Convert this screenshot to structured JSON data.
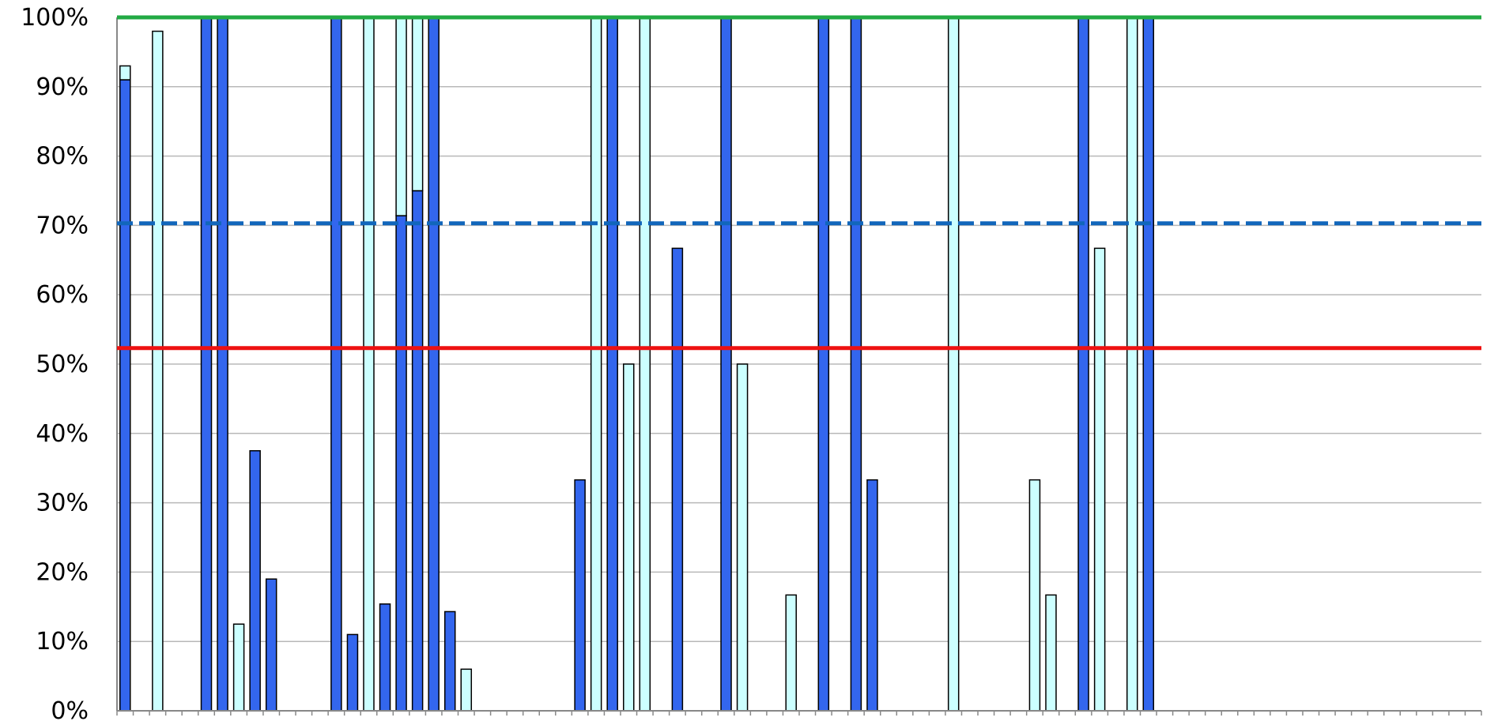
{
  "chart_data": {
    "type": "bar",
    "stacked": true,
    "title": "",
    "xlabel": "",
    "ylabel": "",
    "ylim": [
      0,
      100
    ],
    "yticks": [
      "0%",
      "10%",
      "20%",
      "30%",
      "40%",
      "50%",
      "60%",
      "70%",
      "80%",
      "90%",
      "100%"
    ],
    "grid": true,
    "legend": "none",
    "category_count": 84,
    "series": [
      {
        "color": "#3366ee",
        "values": [
          91,
          0,
          0,
          0,
          0,
          100,
          100,
          0,
          37.5,
          19,
          0,
          0,
          0,
          100,
          11,
          0,
          15.4,
          71.4,
          75,
          100,
          14.3,
          0,
          0,
          0,
          0,
          0,
          0,
          0,
          33.3,
          0,
          100,
          0,
          0,
          0,
          66.7,
          0,
          0,
          100,
          0,
          0,
          0,
          0,
          0,
          100,
          0,
          100,
          33.3,
          0,
          0,
          0,
          0,
          0,
          0,
          0,
          0,
          0,
          0,
          0,
          0,
          100,
          0,
          0,
          0,
          100,
          0,
          0,
          0,
          0,
          0,
          0,
          0,
          0,
          0,
          0,
          0,
          0,
          0,
          0,
          0,
          0,
          0,
          0,
          0,
          0
        ]
      },
      {
        "color": "#ccffff",
        "values": [
          2,
          0,
          98,
          0,
          0,
          0,
          0,
          12.5,
          0,
          0,
          0,
          0,
          0,
          0,
          0,
          100,
          0,
          28.6,
          25,
          0,
          0,
          6,
          0,
          0,
          0,
          0,
          0,
          0,
          0,
          100,
          0,
          50,
          100,
          0,
          0,
          0,
          0,
          0,
          50,
          0,
          0,
          16.7,
          0,
          0,
          0,
          0,
          0,
          0,
          0,
          0,
          0,
          100,
          0,
          0,
          0,
          0,
          33.3,
          16.7,
          0,
          0,
          66.7,
          0,
          100,
          0,
          0,
          0,
          0,
          0,
          0,
          0,
          0,
          0,
          0,
          0,
          0,
          0,
          0,
          0,
          0,
          0,
          0,
          0,
          0,
          0
        ]
      }
    ],
    "reference_lines": [
      {
        "value": 100,
        "color": "#22aa44",
        "style": "solid"
      },
      {
        "value": 70.3,
        "color": "#1166bb",
        "style": "dashed"
      },
      {
        "value": 52.3,
        "color": "#ee1111",
        "style": "solid"
      }
    ]
  }
}
